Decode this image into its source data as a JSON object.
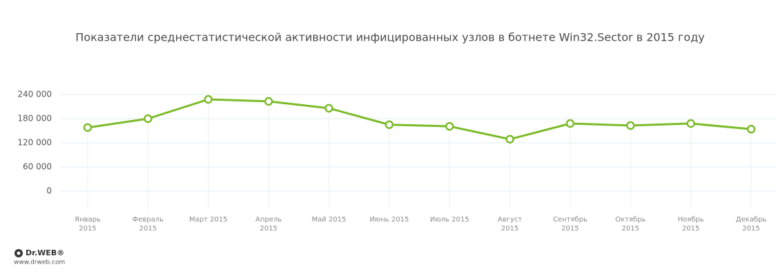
{
  "chart_data": {
    "type": "line",
    "title": "Показатели среднестатистической активности инфицированных узлов в ботнете Win32.Sector в 2015 году",
    "x": [
      "Январь 2015",
      "Февраль 2015",
      "Март 2015",
      "Апрель 2015",
      "Май 2015",
      "Июнь 2015",
      "Июль 2015",
      "Август 2015",
      "Сентябрь 2015",
      "Октябрь 2015",
      "Ноябрь 2015",
      "Декабрь 2015"
    ],
    "series": [
      {
        "color": "#7cbb2a",
        "values": [
          158000,
          180000,
          228000,
          223000,
          206000,
          165000,
          161000,
          129000,
          168000,
          163000,
          168000,
          154000
        ]
      }
    ],
    "ylim": [
      0,
      240000
    ],
    "yticks": [
      0,
      {
        "value": 60000,
        "label": "60 000"
      },
      {
        "value": 120000,
        "label": "120 000"
      },
      {
        "value": 180000,
        "label": "180 000"
      },
      {
        "value": 240000,
        "label": "240 000"
      }
    ],
    "grid": true
  },
  "logo": {
    "brand": "Dr.WEB®",
    "url": "www.drweb.com"
  }
}
